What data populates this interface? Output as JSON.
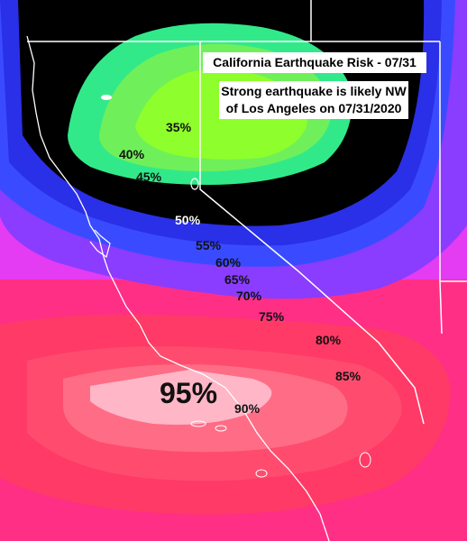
{
  "map": {
    "title": "California Earthquake Risk - 07/31",
    "subtitle_line1": "Strong earthquake is likely NW",
    "subtitle_line2": "of Los Angeles on 07/31/2020",
    "contour_labels": [
      {
        "text": "35%"
      },
      {
        "text": "40%"
      },
      {
        "text": "45%"
      },
      {
        "text": "50%"
      },
      {
        "text": "55%"
      },
      {
        "text": "60%"
      },
      {
        "text": "65%"
      },
      {
        "text": "70%"
      },
      {
        "text": "75%"
      },
      {
        "text": "80%"
      },
      {
        "text": "85%"
      },
      {
        "text": "90%"
      },
      {
        "text": "95%"
      }
    ],
    "colors": {
      "low_green": "#7CFF3A",
      "green": "#35EE7E",
      "black_band": "#000000",
      "blue": "#2A3BFF",
      "purple": "#8A3CFF",
      "magenta": "#E83CF5",
      "pink": "#FF2F86",
      "red": "#FF3D5E",
      "peak": "#FFB6C6"
    }
  }
}
